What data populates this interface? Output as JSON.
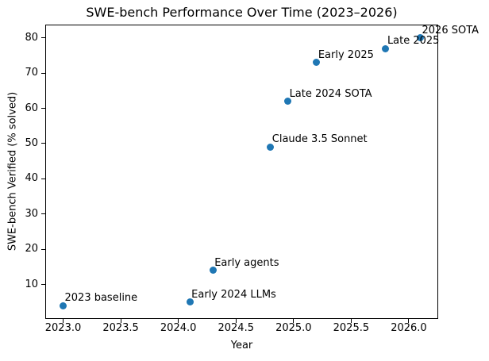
{
  "figure": {
    "background": "#ffffff",
    "axis_color": "#000000",
    "text_color": "#000000"
  },
  "chart_data": {
    "type": "scatter",
    "title": "SWE-bench Performance Over Time (2023–2026)",
    "xlabel": "Year",
    "ylabel": "SWE-bench Verified (% solved)",
    "xlim": [
      2022.845,
      2026.255
    ],
    "ylim": [
      0.2,
      83.8
    ],
    "grid": false,
    "legend": "none",
    "marker_color": "#1f77b4",
    "x_ticks": {
      "values": [
        2023.0,
        2023.5,
        2024.0,
        2024.5,
        2025.0,
        2025.5,
        2026.0
      ],
      "labels": [
        "2023.0",
        "2023.5",
        "2024.0",
        "2024.5",
        "2025.0",
        "2025.5",
        "2026.0"
      ]
    },
    "y_ticks": {
      "values": [
        10,
        20,
        30,
        40,
        50,
        60,
        70,
        80
      ],
      "labels": [
        "10",
        "20",
        "30",
        "40",
        "50",
        "60",
        "70",
        "80"
      ]
    },
    "points": [
      {
        "x": 2023.0,
        "y": 4,
        "label": "2023 baseline"
      },
      {
        "x": 2024.1,
        "y": 5,
        "label": "Early 2024 LLMs"
      },
      {
        "x": 2024.3,
        "y": 14,
        "label": "Early agents"
      },
      {
        "x": 2024.8,
        "y": 49,
        "label": "Claude 3.5 Sonnet"
      },
      {
        "x": 2024.95,
        "y": 62,
        "label": "Late 2024 SOTA"
      },
      {
        "x": 2025.2,
        "y": 73,
        "label": "Early 2025"
      },
      {
        "x": 2025.8,
        "y": 77,
        "label": "Late 2025"
      },
      {
        "x": 2026.1,
        "y": 80,
        "label": "2026 SOTA"
      }
    ]
  }
}
